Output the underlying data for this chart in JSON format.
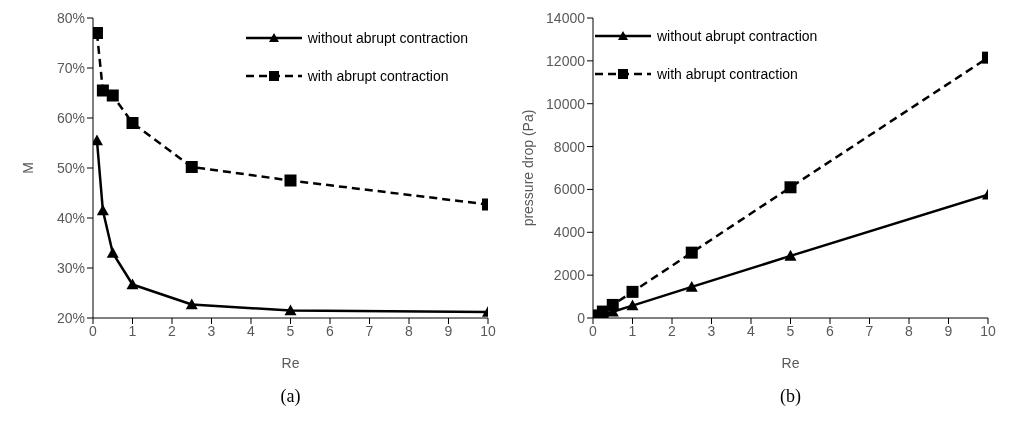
{
  "chart_data": [
    {
      "type": "line",
      "xlabel": "Re",
      "ylabel": "M",
      "annotations": [
        "(a)"
      ],
      "x": [
        0.1,
        0.25,
        0.5,
        1,
        2.5,
        5,
        10
      ],
      "xlim": [
        0,
        10
      ],
      "xticks": [
        0,
        1,
        2,
        3,
        4,
        5,
        6,
        7,
        8,
        9,
        10
      ],
      "ylim": [
        20,
        80
      ],
      "yticks": [
        {
          "value": 20,
          "label": "20%"
        },
        {
          "value": 30,
          "label": "30%"
        },
        {
          "value": 40,
          "label": "40%"
        },
        {
          "value": 50,
          "label": "50%"
        },
        {
          "value": 60,
          "label": "60%"
        },
        {
          "value": 70,
          "label": "70%"
        },
        {
          "value": 80,
          "label": "80%"
        }
      ],
      "grid": false,
      "legend": "top right",
      "series": [
        {
          "name": "without abrupt contraction",
          "color": "#000000",
          "marker": "triangle",
          "line_style": "solid",
          "values": [
            55.5,
            41.5,
            33,
            26.7,
            22.7,
            21.5,
            21.2
          ]
        },
        {
          "name": "with abrupt contraction",
          "color": "#000000",
          "marker": "square",
          "line_style": "dashed",
          "values": [
            77,
            65.5,
            64.5,
            59,
            50.2,
            47.5,
            42.7
          ]
        }
      ]
    },
    {
      "type": "line",
      "xlabel": "Re",
      "ylabel": "pressure drop (Pa)",
      "annotations": [
        "(b)"
      ],
      "x": [
        0.1,
        0.25,
        0.5,
        1,
        2.5,
        5,
        10
      ],
      "xlim": [
        0,
        10
      ],
      "xticks": [
        0,
        1,
        2,
        3,
        4,
        5,
        6,
        7,
        8,
        9,
        10
      ],
      "ylim": [
        0,
        14000
      ],
      "yticks": [
        0,
        2000,
        4000,
        6000,
        8000,
        10000,
        12000,
        14000
      ],
      "grid": false,
      "legend": "top left",
      "series": [
        {
          "name": "without abrupt contraction",
          "color": "#000000",
          "marker": "triangle",
          "line_style": "solid",
          "values": [
            60,
            150,
            290,
            580,
            1450,
            2900,
            5750
          ]
        },
        {
          "name": "with abrupt contraction",
          "color": "#000000",
          "marker": "square",
          "line_style": "dashed",
          "values": [
            120,
            300,
            610,
            1220,
            3050,
            6100,
            12150
          ]
        }
      ]
    }
  ]
}
